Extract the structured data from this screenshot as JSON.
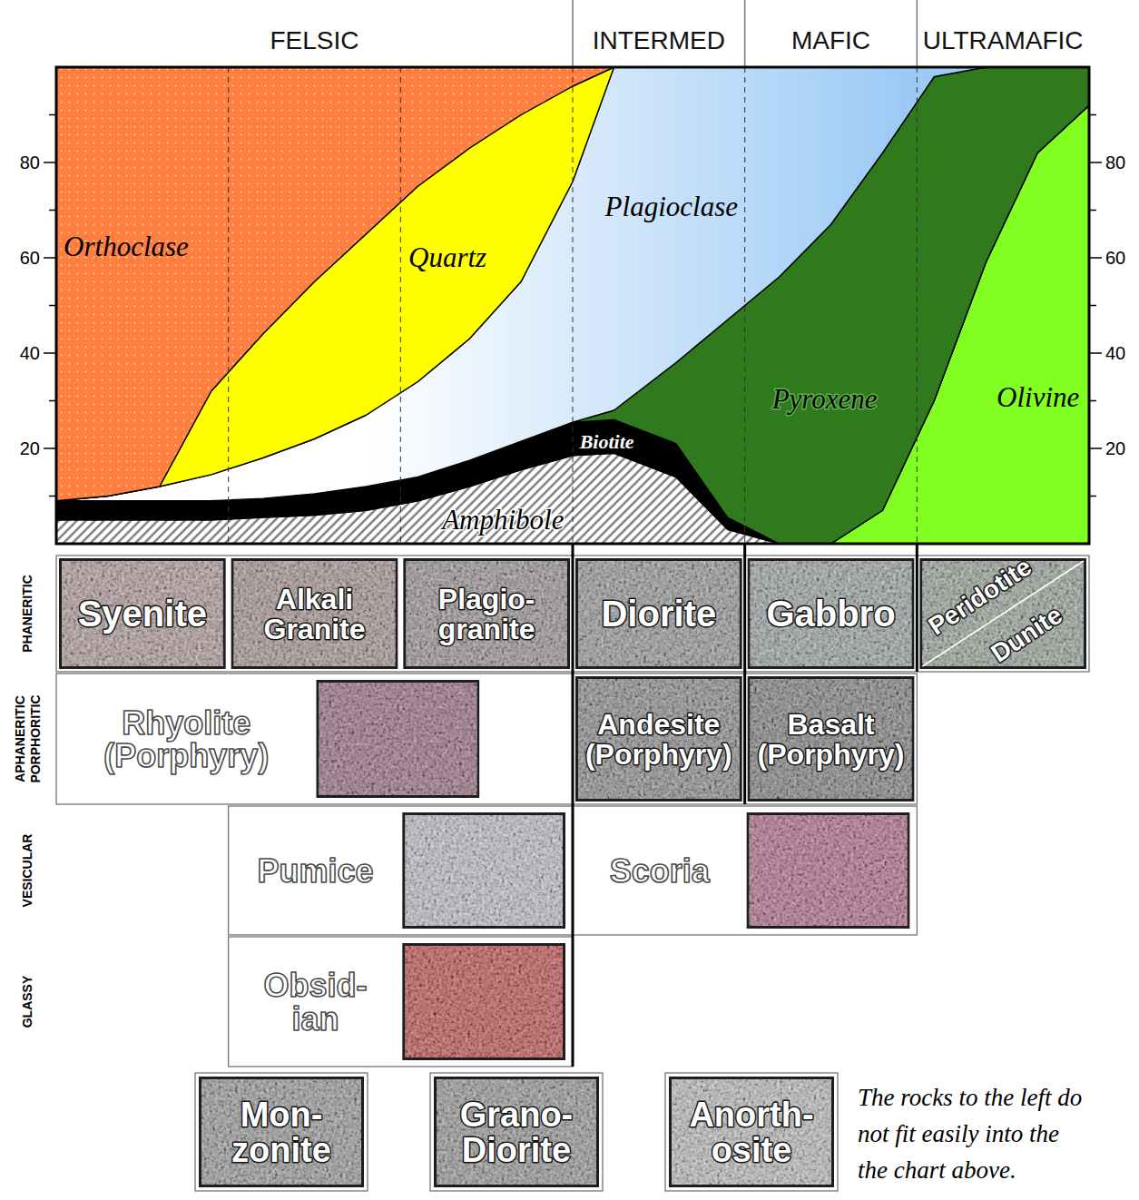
{
  "header": {
    "groups": [
      {
        "label": "FELSIC",
        "span": 3
      },
      {
        "label": "INTERMED",
        "span": 1
      },
      {
        "label": "MAFIC",
        "span": 1
      },
      {
        "label": "ULTRAMAFIC",
        "span": 1
      }
    ]
  },
  "chart_data": {
    "type": "area",
    "stacked": true,
    "x": [
      0,
      5,
      10,
      15,
      20,
      25,
      30,
      35,
      40,
      45,
      50,
      54,
      60,
      65,
      70,
      75,
      80,
      85,
      90,
      95,
      100
    ],
    "xlim": [
      0,
      100
    ],
    "ylim": [
      0,
      100
    ],
    "yticks": [
      20,
      40,
      60,
      80
    ],
    "minor_yticks": [
      10,
      30,
      50,
      70,
      90
    ],
    "tick_labels": "y",
    "series": [
      {
        "name": "Olivine",
        "color": "#80ff20",
        "values": [
          0,
          0,
          0,
          0,
          0,
          0,
          0,
          0,
          0,
          0,
          0,
          0,
          0,
          0,
          0,
          0,
          7,
          30,
          59,
          82,
          92
        ]
      },
      {
        "name": "Amphibole",
        "color": "#6e6e6e",
        "values": [
          5,
          5,
          5,
          5,
          5.5,
          6,
          7,
          9,
          12,
          15.5,
          18.5,
          19,
          14,
          3,
          0,
          0,
          0,
          0,
          0,
          0,
          0
        ]
      },
      {
        "name": "Biotite",
        "color": "#000000",
        "values": [
          4,
          4,
          4,
          4,
          4,
          4.5,
          5,
          5,
          5.5,
          6,
          7,
          7,
          7,
          2.5,
          0,
          0,
          0,
          0,
          0,
          0,
          0
        ]
      },
      {
        "name": "Pyroxene",
        "color": "#2e7a1c",
        "values": [
          0,
          0,
          0,
          0,
          0,
          0,
          0,
          0,
          0,
          0,
          0,
          2,
          17,
          41.5,
          56,
          67,
          75,
          68,
          41,
          18,
          8
        ]
      },
      {
        "name": "Plagioclase",
        "color": "#9ccaf5",
        "values": [
          0,
          1,
          3,
          5.5,
          8.5,
          11.5,
          15,
          20,
          25.5,
          33.5,
          50.5,
          72,
          62,
          53,
          44,
          33,
          18,
          2,
          0,
          0,
          0
        ]
      },
      {
        "name": "Quartz",
        "color": "#ffff00",
        "values": [
          0,
          0,
          0,
          17.5,
          26,
          33,
          38,
          41,
          40,
          35,
          20,
          0,
          0,
          0,
          0,
          0,
          0,
          0,
          0,
          0,
          0
        ]
      },
      {
        "name": "Orthoclase",
        "color": "#ff7f40",
        "values": [
          91,
          90,
          88,
          68,
          56,
          45,
          35,
          25,
          17,
          10,
          4,
          0,
          0,
          0,
          0,
          0,
          0,
          0,
          0,
          0,
          0
        ]
      }
    ]
  },
  "rows": [
    {
      "label": [
        "PHANERITIC"
      ],
      "cells": [
        {
          "label": [
            "Syenite"
          ],
          "start": 0,
          "span": 1
        },
        {
          "label": [
            "Alkali",
            "Granite"
          ],
          "start": 1,
          "span": 1
        },
        {
          "label": [
            "Plagio-",
            "granite"
          ],
          "start": 2,
          "span": 1
        },
        {
          "label": [
            "Diorite"
          ],
          "start": 3,
          "span": 1
        },
        {
          "label": [
            "Gabbro"
          ],
          "start": 4,
          "span": 1
        },
        {
          "rocks": [
            {
              "label": [
                "Peridotite"
              ]
            },
            {
              "label": [
                "Dunite"
              ]
            }
          ],
          "start": 5,
          "span": 1
        }
      ]
    },
    {
      "label": [
        "APHANERITIC",
        "PORPHORITIC"
      ],
      "cells": [
        {
          "label": [
            "Rhyolite",
            "(Porphyry)"
          ],
          "start": 0,
          "span": 3
        },
        {
          "label": [
            "Andesite",
            "(Porphyry)"
          ],
          "start": 3,
          "span": 1
        },
        {
          "label": [
            "Basalt",
            "(Porphyry)"
          ],
          "start": 4,
          "span": 1
        }
      ]
    },
    {
      "label": [
        "VESICULAR"
      ],
      "cells": [
        {
          "label": [
            "Pumice"
          ],
          "start": 1,
          "span": 2
        },
        {
          "label": [
            "Scoria"
          ],
          "start": 3,
          "span": 2
        }
      ]
    },
    {
      "label": [
        "GLASSY"
      ],
      "cells": [
        {
          "label": [
            "Obsid-",
            "ian"
          ],
          "start": 1,
          "span": 2
        }
      ]
    }
  ],
  "extras": {
    "cells": [
      {
        "label": [
          "Mon-",
          "zonite"
        ]
      },
      {
        "label": [
          "Grano-",
          "Diorite"
        ]
      },
      {
        "label": [
          "Anorth-",
          "osite"
        ]
      }
    ],
    "note": [
      "The rocks to the left do",
      "not fit easily into the",
      "the chart above."
    ]
  }
}
